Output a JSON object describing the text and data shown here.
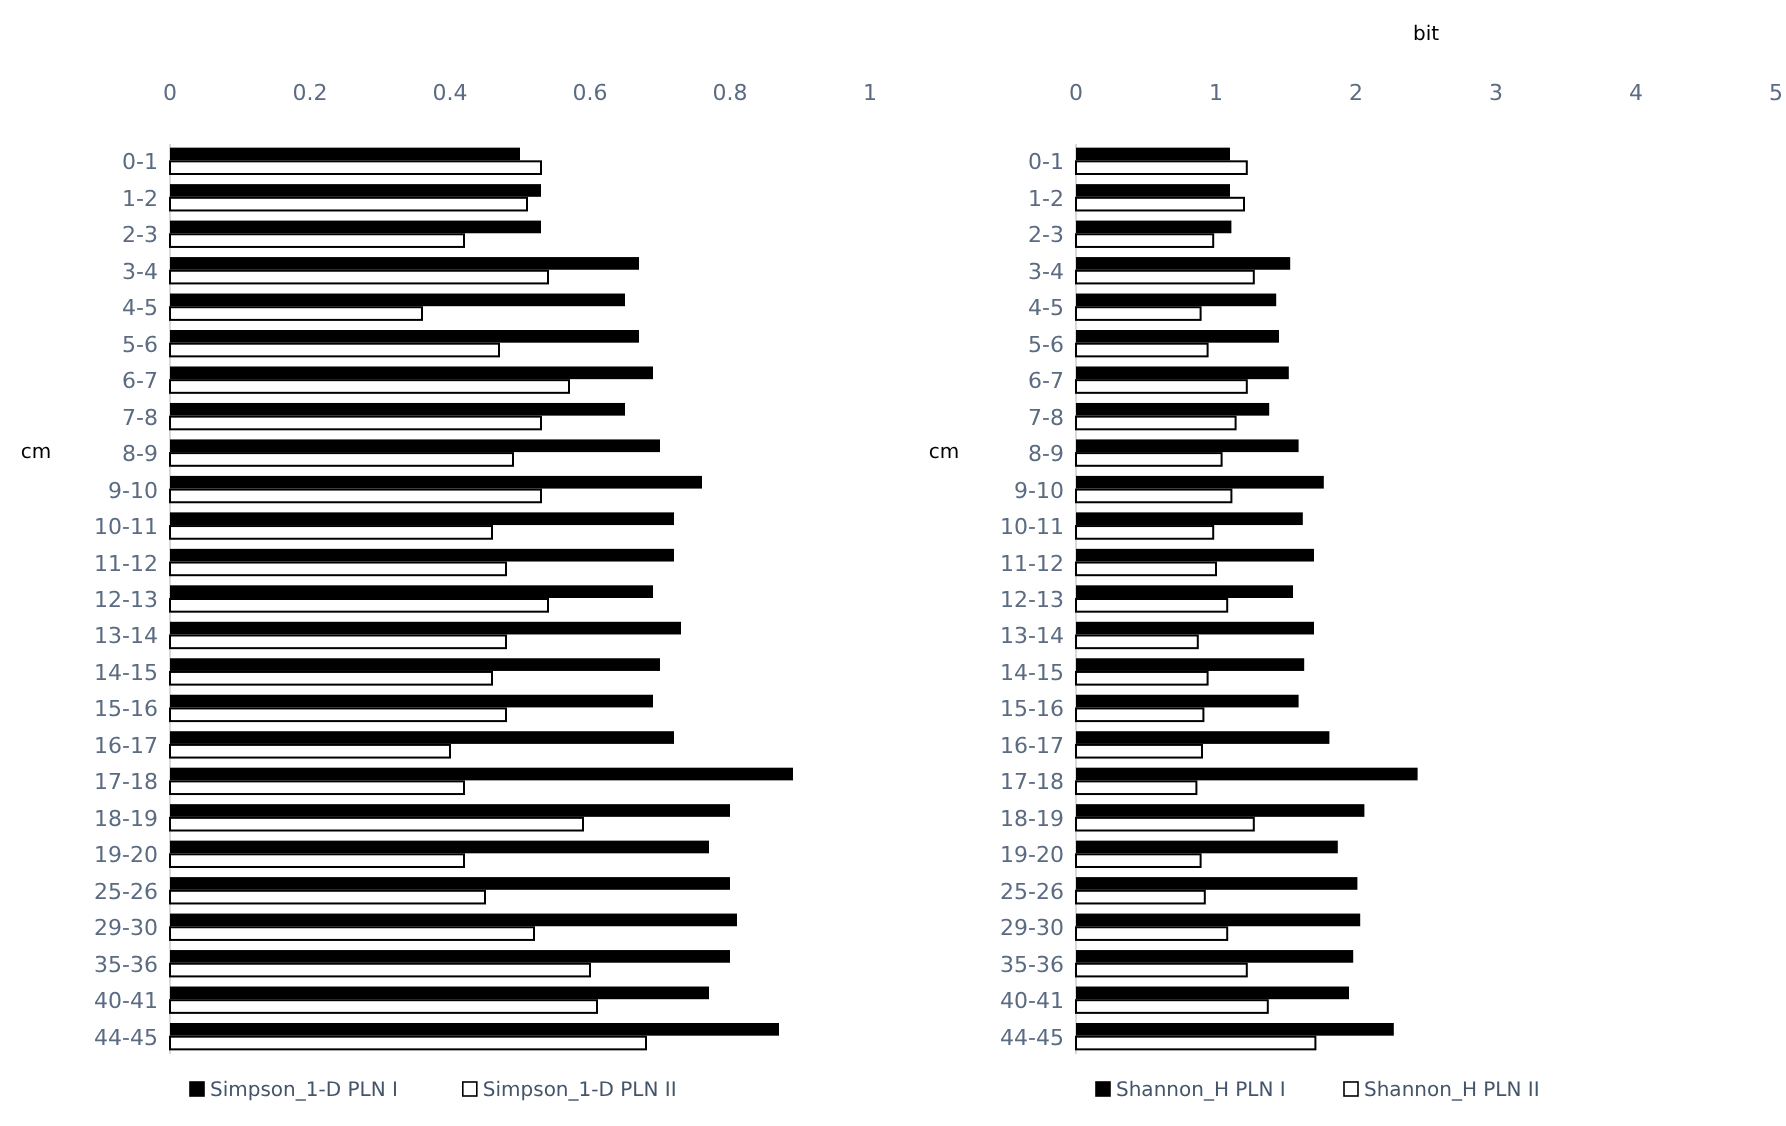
{
  "chart_data": [
    {
      "type": "bar",
      "orientation": "horizontal",
      "ylabel": "cm",
      "categories": [
        "0-1",
        "1-2",
        "2-3",
        "3-4",
        "4-5",
        "5-6",
        "6-7",
        "7-8",
        "8-9",
        "9-10",
        "10-11",
        "11-12",
        "12-13",
        "13-14",
        "14-15",
        "15-16",
        "16-17",
        "17-18",
        "18-19",
        "19-20",
        "25-26",
        "29-30",
        "35-36",
        "40-41",
        "44-45"
      ],
      "series": [
        {
          "name": "Simpson_1-D PLN I",
          "color": "#000000",
          "values": [
            0.5,
            0.53,
            0.53,
            0.67,
            0.65,
            0.67,
            0.69,
            0.65,
            0.7,
            0.76,
            0.72,
            0.72,
            0.69,
            0.73,
            0.7,
            0.69,
            0.72,
            0.89,
            0.8,
            0.77,
            0.8,
            0.81,
            0.8,
            0.77,
            0.87
          ]
        },
        {
          "name": "Simpson_1-D PLN II",
          "color": "#ffffff",
          "values": [
            0.53,
            0.51,
            0.42,
            0.54,
            0.36,
            0.47,
            0.57,
            0.53,
            0.49,
            0.53,
            0.46,
            0.48,
            0.54,
            0.48,
            0.46,
            0.48,
            0.4,
            0.42,
            0.59,
            0.42,
            0.45,
            0.52,
            0.6,
            0.61,
            0.68
          ]
        }
      ],
      "xlim": [
        0,
        1
      ],
      "xticks": [
        0,
        0.2,
        0.4,
        0.6,
        0.8,
        1
      ],
      "legend": "bottom"
    },
    {
      "type": "bar",
      "orientation": "horizontal",
      "xlabel": "bit",
      "ylabel": "cm",
      "categories": [
        "0-1",
        "1-2",
        "2-3",
        "3-4",
        "4-5",
        "5-6",
        "6-7",
        "7-8",
        "8-9",
        "9-10",
        "10-11",
        "11-12",
        "12-13",
        "13-14",
        "14-15",
        "15-16",
        "16-17",
        "17-18",
        "18-19",
        "19-20",
        "25-26",
        "29-30",
        "35-36",
        "40-41",
        "44-45"
      ],
      "series": [
        {
          "name": "Shannon_H PLN I",
          "color": "#000000",
          "values": [
            1.1,
            1.1,
            1.11,
            1.53,
            1.43,
            1.45,
            1.52,
            1.38,
            1.59,
            1.77,
            1.62,
            1.7,
            1.55,
            1.7,
            1.63,
            1.59,
            1.81,
            2.44,
            2.06,
            1.87,
            2.01,
            2.03,
            1.98,
            1.95,
            2.27
          ]
        },
        {
          "name": "Shannon_H PLN II",
          "color": "#ffffff",
          "values": [
            1.22,
            1.2,
            0.98,
            1.27,
            0.89,
            0.94,
            1.22,
            1.14,
            1.04,
            1.11,
            0.98,
            1.0,
            1.08,
            0.87,
            0.94,
            0.91,
            0.9,
            0.86,
            1.27,
            0.89,
            0.92,
            1.08,
            1.22,
            1.37,
            1.71
          ]
        }
      ],
      "xlim": [
        0,
        5
      ],
      "xticks": [
        0,
        1,
        2,
        3,
        4,
        5
      ],
      "legend": "bottom"
    }
  ]
}
